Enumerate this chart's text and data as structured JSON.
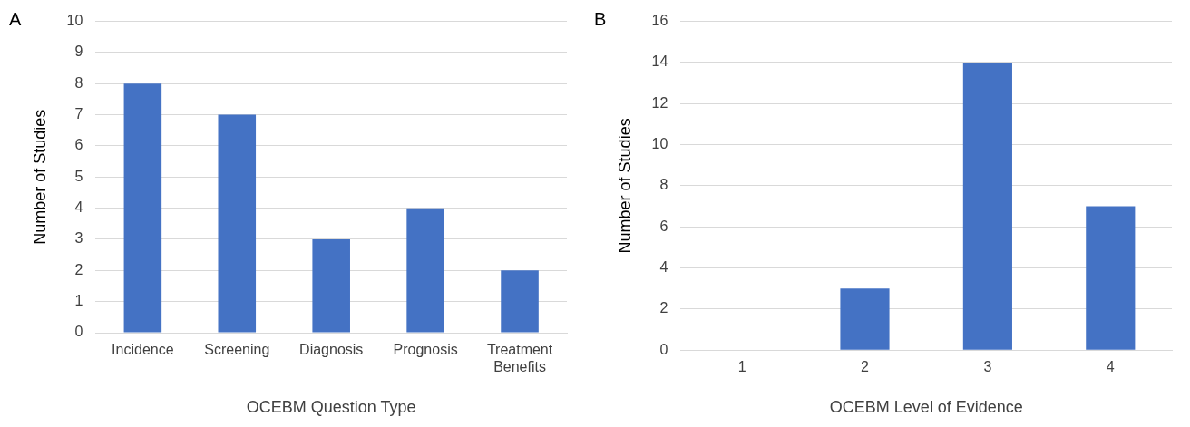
{
  "chart_data": [
    {
      "type": "bar",
      "annotations": [
        "A"
      ],
      "xlabel": "OCEBM Question Type",
      "ylabel": "Number of Studies",
      "categories": [
        "Incidence",
        "Screening",
        "Diagnosis",
        "Prognosis",
        "Treatment Benefits"
      ],
      "values": [
        8,
        7,
        3,
        4,
        2
      ],
      "color": "#4472c4",
      "ylim": [
        0,
        10
      ],
      "yticks": [
        0,
        1,
        2,
        3,
        4,
        5,
        6,
        7,
        8,
        9,
        10
      ],
      "grid": "y"
    },
    {
      "type": "bar",
      "annotations": [
        "B"
      ],
      "xlabel": "OCEBM Level of Evidence",
      "ylabel": "Number of Studies",
      "categories": [
        "1",
        "2",
        "3",
        "4"
      ],
      "values": [
        0,
        3,
        14,
        7
      ],
      "color": "#4472c4",
      "ylim": [
        0,
        16
      ],
      "yticks": [
        0,
        2,
        4,
        6,
        8,
        10,
        12,
        14,
        16
      ],
      "grid": "y"
    }
  ]
}
